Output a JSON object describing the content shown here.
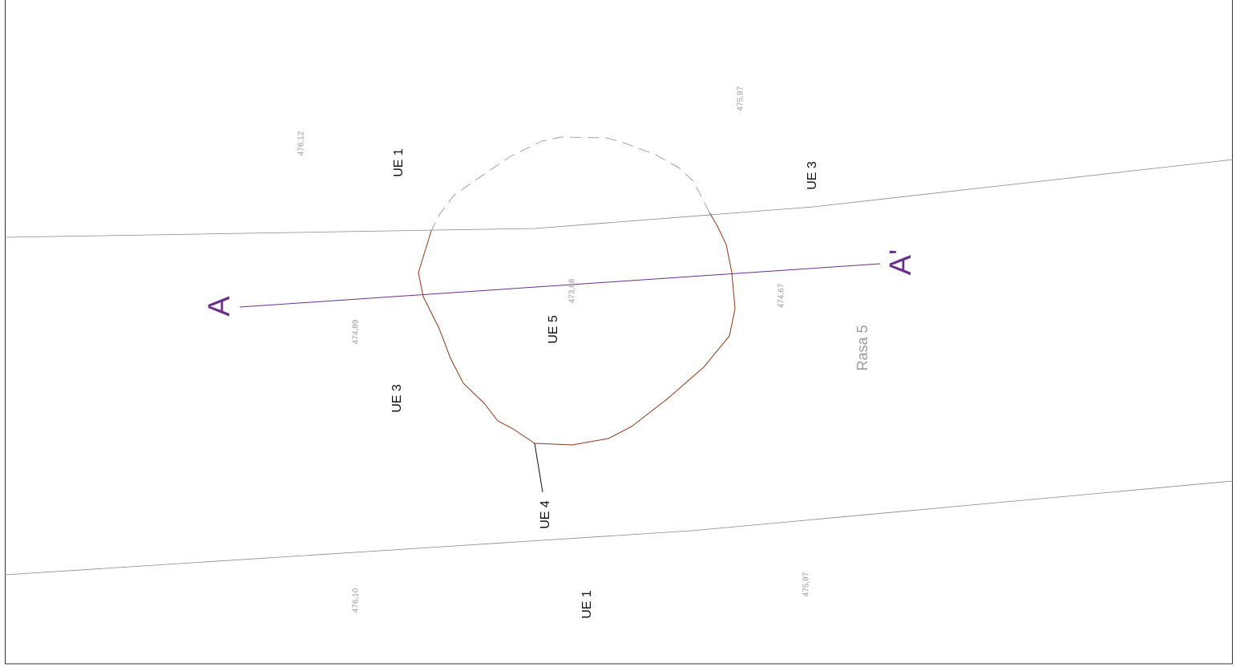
{
  "labels": [
    "476,12",
    "UE 1",
    "475,97",
    "UE 3",
    "A",
    "A'",
    "473,68",
    "474,67",
    "474,89",
    "UE 5",
    "Rasa 5",
    "UE 3",
    "UE 4",
    "476,10",
    "UE 1",
    "475,97"
  ]
}
